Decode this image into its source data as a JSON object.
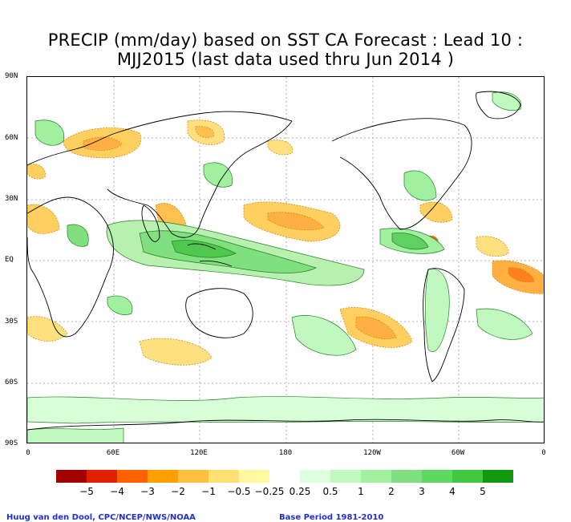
{
  "title_line1": "PRECIP (mm/day) based on SST CA Forecast : Lead 10 :",
  "title_line2": "MJJ2015 (last data used thru Jun 2014 )",
  "lat_labels": [
    "90N",
    "60N",
    "30N",
    "EQ",
    "30S",
    "60S",
    "90S"
  ],
  "lon_labels": [
    "0",
    "60E",
    "120E",
    "180",
    "120W",
    "60W",
    "0"
  ],
  "colorbar": {
    "colors": [
      "#a00000",
      "#e02000",
      "#ff6000",
      "#ffa000",
      "#ffc040",
      "#ffe070",
      "#fff8a0",
      "#ffffff",
      "#e0ffe0",
      "#c0f8c0",
      "#a0f0a0",
      "#80e080",
      "#60d860",
      "#40c840",
      "#109810"
    ],
    "labels": [
      "−5",
      "−4",
      "−3",
      "−2",
      "−1",
      "−0.5",
      "−0.25",
      "0.25",
      "0.5",
      "1",
      "2",
      "3",
      "4",
      "5"
    ]
  },
  "footer_left": "Huug van den Dool, CPC/NCEP/NWS/NOAA",
  "footer_right": "Base Period 1981-2010"
}
